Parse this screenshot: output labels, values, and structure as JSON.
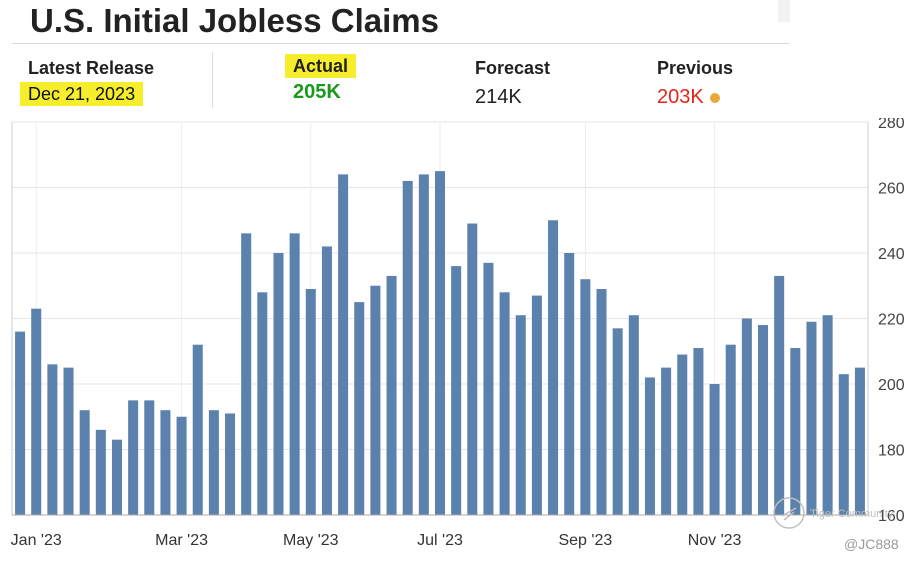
{
  "title": "U.S. Initial Jobless Claims",
  "stats": {
    "latest_label": "Latest Release",
    "latest_value": "Dec 21, 2023",
    "actual_label": "Actual",
    "actual_value": "205K",
    "forecast_label": "Forecast",
    "forecast_value": "214K",
    "previous_label": "Previous",
    "previous_value": "203K"
  },
  "colors": {
    "bar": "#5b82ac",
    "actual": "#1a9a1a",
    "previous": "#e0261c",
    "highlight": "#f6ee2c",
    "dot": "#e8a93a"
  },
  "chart_data": {
    "type": "bar",
    "ylim": [
      160,
      280
    ],
    "yticks": [
      160,
      180,
      200,
      220,
      240,
      260,
      280
    ],
    "xtick_labels": [
      {
        "label": "Jan '23",
        "index": 1
      },
      {
        "label": "Mar '23",
        "index": 10
      },
      {
        "label": "May '23",
        "index": 18
      },
      {
        "label": "Jul '23",
        "index": 26
      },
      {
        "label": "Sep '23",
        "index": 35
      },
      {
        "label": "Nov '23",
        "index": 43
      }
    ],
    "values": [
      216,
      223,
      206,
      205,
      192,
      186,
      183,
      195,
      195,
      192,
      190,
      212,
      192,
      191,
      246,
      228,
      240,
      246,
      229,
      242,
      264,
      225,
      230,
      233,
      262,
      264,
      265,
      236,
      249,
      237,
      228,
      221,
      227,
      250,
      240,
      232,
      229,
      217,
      221,
      202,
      205,
      209,
      211,
      200,
      212,
      220,
      218,
      233,
      211,
      219,
      221,
      203,
      205
    ],
    "grid": true
  },
  "watermark": {
    "brand": "Tiger Community",
    "handle": "@JC888"
  }
}
